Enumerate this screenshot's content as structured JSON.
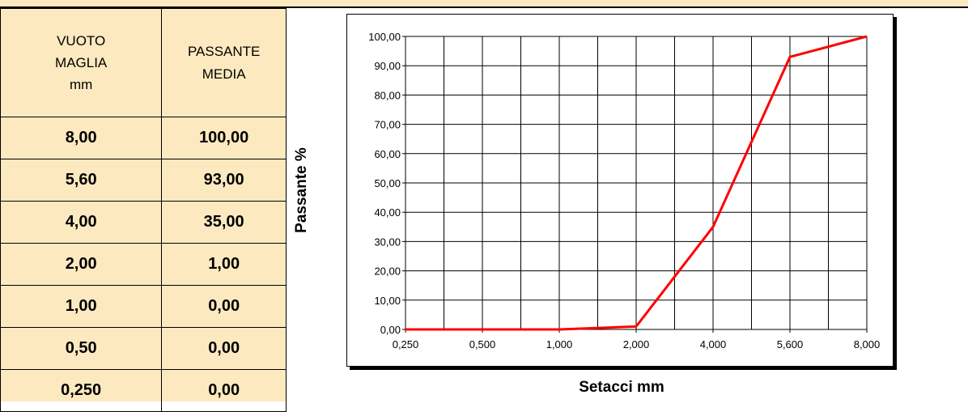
{
  "table": {
    "header_col1_line1": "VUOTO",
    "header_col1_line2": "MAGLIA",
    "header_col1_line3": "mm",
    "header_col2_line1": "PASSANTE",
    "header_col2_line2": "MEDIA",
    "rows": [
      {
        "maglia": "8,00",
        "passante": "100,00"
      },
      {
        "maglia": "5,60",
        "passante": "93,00"
      },
      {
        "maglia": "4,00",
        "passante": "35,00"
      },
      {
        "maglia": "2,00",
        "passante": "1,00"
      },
      {
        "maglia": "1,00",
        "passante": "0,00"
      },
      {
        "maglia": "0,50",
        "passante": "0,00"
      },
      {
        "maglia": "0,250",
        "passante": "0,00"
      }
    ]
  },
  "colors": {
    "table_bg": "#fde9c0",
    "series_line": "#ff0000"
  },
  "chart_data": {
    "type": "line",
    "categories": [
      "0,250",
      "0,500",
      "1,000",
      "2,000",
      "4,000",
      "5,600",
      "8,000"
    ],
    "series": [
      {
        "values": [
          0,
          0,
          0,
          1,
          35,
          93,
          100
        ]
      }
    ],
    "ytick_labels": [
      "0,00",
      "10,00",
      "20,00",
      "30,00",
      "40,00",
      "50,00",
      "60,00",
      "70,00",
      "80,00",
      "90,00",
      "100,00"
    ],
    "ylim": [
      0,
      100
    ],
    "ylabel": "Passante %",
    "xlabel": "Setacci  mm",
    "grid": true,
    "legend": "none"
  }
}
